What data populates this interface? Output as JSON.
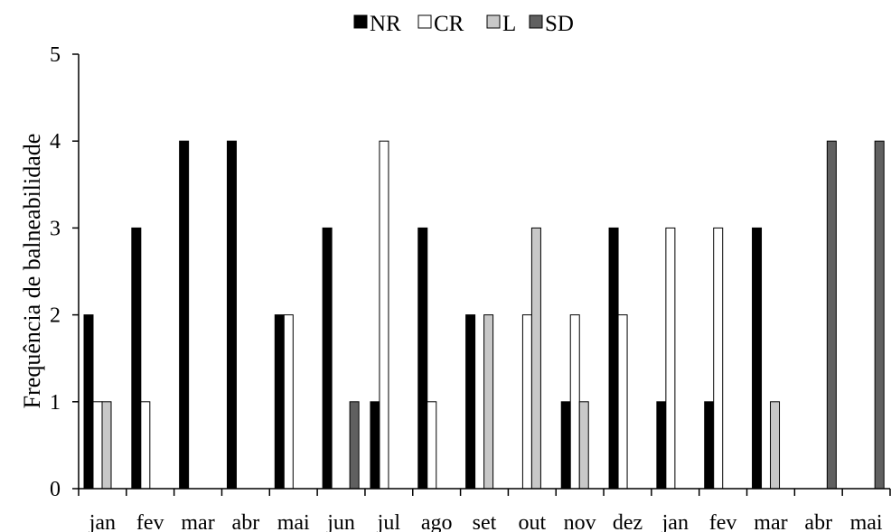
{
  "chart_data": {
    "type": "bar",
    "title": "",
    "xlabel": "",
    "ylabel": "Frequência de balneabilidade",
    "ylim": [
      0,
      5
    ],
    "yticks": [
      "0",
      "1",
      "2",
      "3",
      "4",
      "5"
    ],
    "grid": false,
    "legend_position": "top-center",
    "categories": [
      "jan",
      "fev",
      "mar",
      "abr",
      "mai",
      "jun",
      "jul",
      "ago",
      "set",
      "out",
      "nov",
      "dez",
      "jan",
      "fev",
      "mar",
      "abr",
      "mai"
    ],
    "series": [
      {
        "name": "NR",
        "color": "#000000",
        "values": [
          2,
          3,
          4,
          4,
          2,
          3,
          1,
          3,
          2,
          0,
          1,
          3,
          1,
          1,
          3,
          0,
          0
        ]
      },
      {
        "name": "CR",
        "color": "#ffffff",
        "values": [
          1,
          1,
          0,
          0,
          2,
          0,
          4,
          1,
          0,
          2,
          2,
          2,
          3,
          3,
          0,
          0,
          0
        ]
      },
      {
        "name": "L",
        "color": "#c8c8c8",
        "values": [
          1,
          0,
          0,
          0,
          0,
          0,
          0,
          0,
          2,
          3,
          1,
          0,
          0,
          0,
          1,
          0,
          0
        ]
      },
      {
        "name": "SD",
        "color": "#606060",
        "values": [
          0,
          0,
          0,
          0,
          0,
          1,
          0,
          0,
          0,
          0,
          0,
          0,
          0,
          0,
          0,
          4,
          4
        ]
      }
    ]
  }
}
